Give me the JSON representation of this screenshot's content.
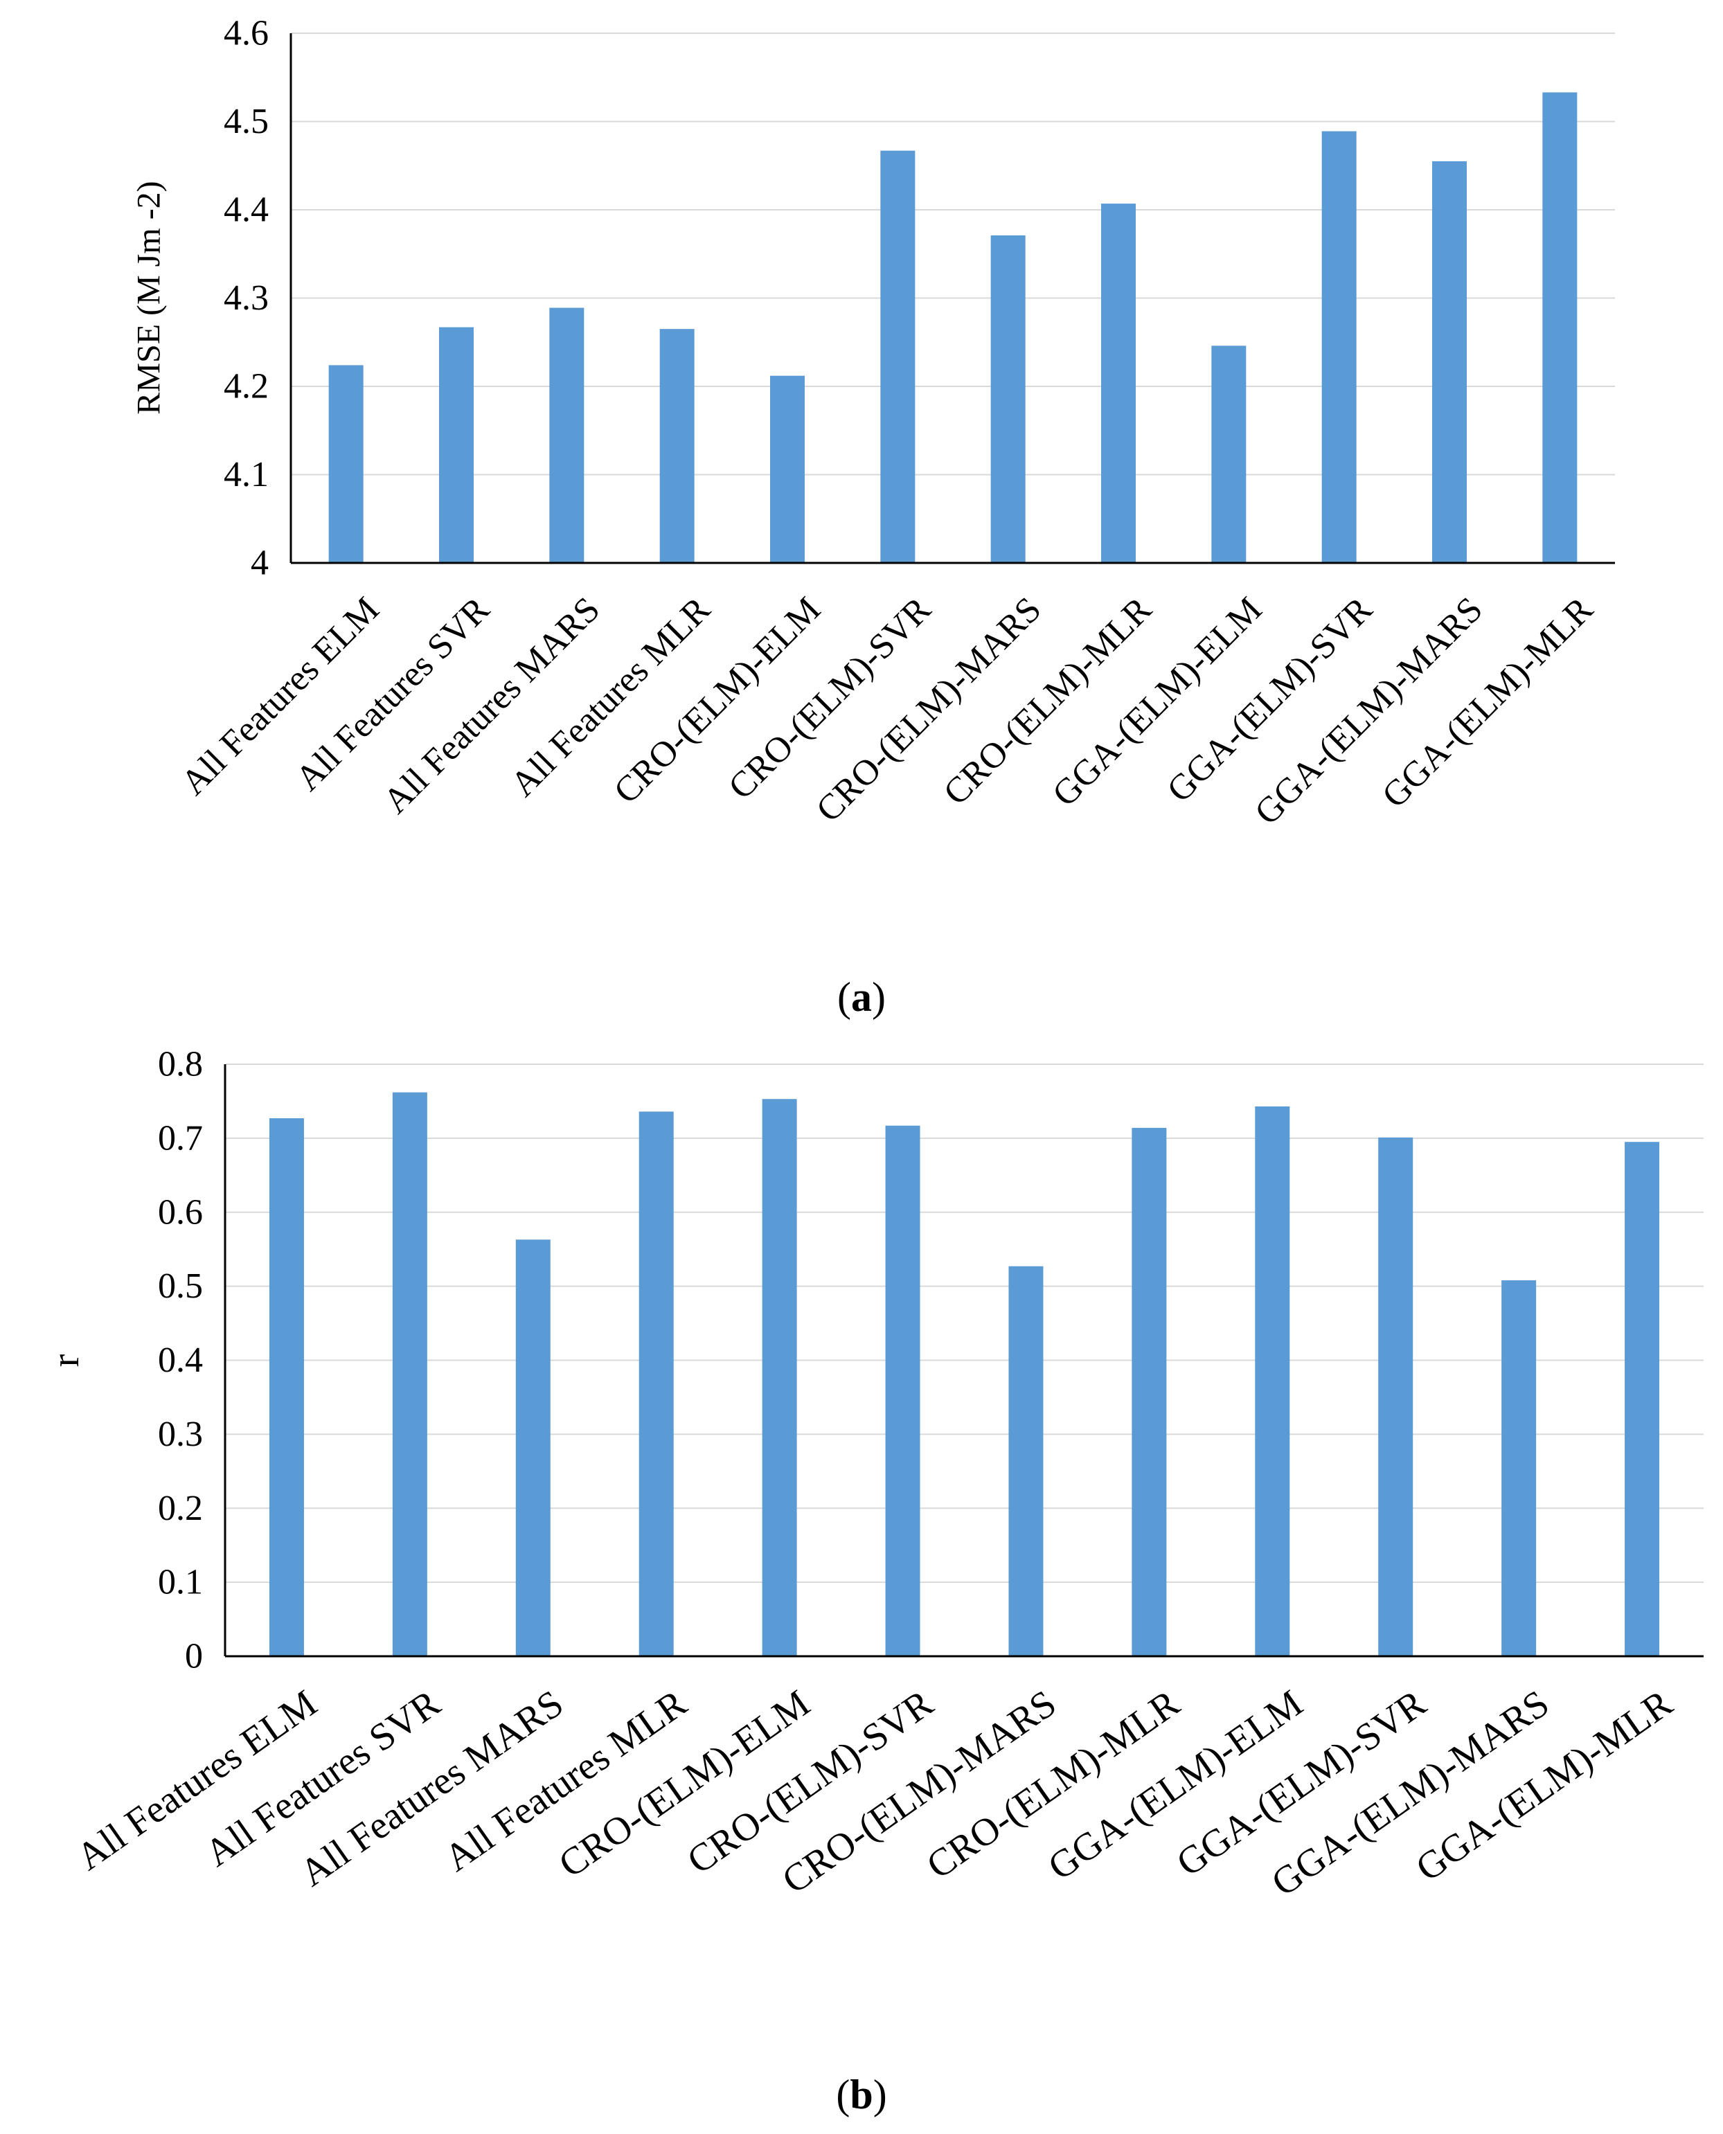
{
  "colors": {
    "bar": "#5b9bd5",
    "grid": "#d9d9d9",
    "axis": "#000000",
    "text": "#000000"
  },
  "chart_data": [
    {
      "type": "bar",
      "panel_label": "a",
      "title": "",
      "xlabel": "",
      "ylabel": "RMSE (M Jm -2)",
      "ylim": [
        4,
        4.6
      ],
      "ytick_values": [
        4,
        4.1,
        4.2,
        4.3,
        4.4,
        4.5,
        4.6
      ],
      "ytick_labels": [
        "4",
        "4.1",
        "4.2",
        "4.3",
        "4.4",
        "4.5",
        "4.6"
      ],
      "grid": true,
      "categories": [
        "All Features ELM",
        "All Features SVR",
        "All Features MARS",
        "All Features MLR",
        "CRO-(ELM)-ELM",
        "CRO-(ELM)-SVR",
        "CRO-(ELM)-MARS",
        "CRO-(ELM)-MLR",
        "GGA-(ELM)-ELM",
        "GGA-(ELM)-SVR",
        "GGA-(ELM)-MARS",
        "GGA-(ELM)-MLR"
      ],
      "values": [
        4.224,
        4.267,
        4.289,
        4.265,
        4.212,
        4.467,
        4.371,
        4.407,
        4.246,
        4.489,
        4.455,
        4.533
      ]
    },
    {
      "type": "bar",
      "panel_label": "b",
      "title": "",
      "xlabel": "",
      "ylabel": "r",
      "ylim": [
        0,
        0.8
      ],
      "ytick_values": [
        0,
        0.1,
        0.2,
        0.3,
        0.4,
        0.5,
        0.6,
        0.7,
        0.8
      ],
      "ytick_labels": [
        "0",
        "0.1",
        "0.2",
        "0.3",
        "0.4",
        "0.5",
        "0.6",
        "0.7",
        "0.8"
      ],
      "grid": true,
      "categories": [
        "All Features ELM",
        "All Features SVR",
        "All Features MARS",
        "All Features MLR",
        "CRO-(ELM)-ELM",
        "CRO-(ELM)-SVR",
        "CRO-(ELM)-MARS",
        "CRO-(ELM)-MLR",
        "GGA-(ELM)-ELM",
        "GGA-(ELM)-SVR",
        "GGA-(ELM)-MARS",
        "GGA-(ELM)-MLR"
      ],
      "values": [
        0.727,
        0.762,
        0.563,
        0.736,
        0.753,
        0.717,
        0.527,
        0.714,
        0.743,
        0.701,
        0.508,
        0.695
      ]
    }
  ]
}
